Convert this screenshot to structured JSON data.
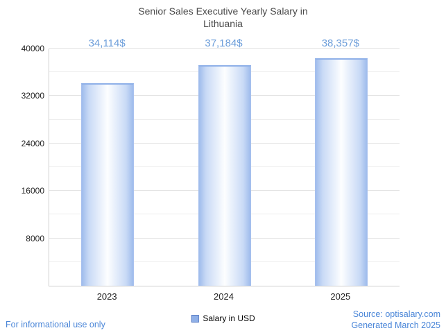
{
  "chart_data": {
    "type": "bar",
    "title": "Senior Sales Executive Yearly Salary in Lithuania",
    "categories": [
      "2023",
      "2024",
      "2025"
    ],
    "values": [
      34114,
      37184,
      38357
    ],
    "value_labels": [
      "34,114$",
      "37,184$",
      "38,357$"
    ],
    "series": [
      {
        "name": "Salary in USD",
        "values": [
          34114,
          37184,
          38357
        ]
      }
    ],
    "xlabel": "",
    "ylabel": "",
    "ylim": [
      0,
      40000
    ],
    "ytick_step": 8000,
    "minor_gridline_step": 4000,
    "grid": true,
    "legend_position": "bottom"
  },
  "legend": {
    "label": "Salary in USD"
  },
  "footer": {
    "left_note": "For informational use only",
    "source": "Source: optisalary.com",
    "generated": "Generated March 2025"
  },
  "colors": {
    "bar_edge": "#9fbcec",
    "bar_center": "#fdfeff",
    "bar_top_border": "#8fb0e8",
    "value_label": "#6d9eda",
    "footer_text": "#4a86d8",
    "title_text": "#4a4a4a",
    "gridline": "#e2e2e2"
  }
}
